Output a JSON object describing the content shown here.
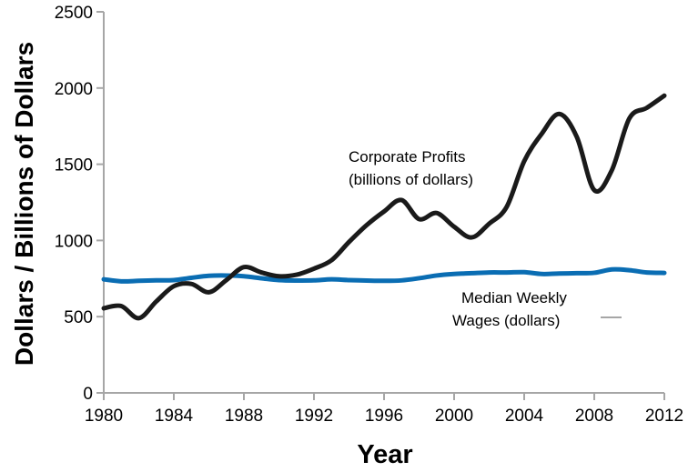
{
  "chart_data": {
    "type": "line",
    "title": "",
    "xlabel": "Year",
    "ylabel": "Dollars / Billions of Dollars",
    "xlim": [
      1980,
      2012
    ],
    "ylim": [
      0,
      2500
    ],
    "grid": false,
    "x_ticks": [
      1980,
      1984,
      1988,
      1992,
      1996,
      2000,
      2004,
      2008,
      2012
    ],
    "x_tick_labels": [
      "1980",
      "1984",
      "1988",
      "1992",
      "1996",
      "2000",
      "2004",
      "2008",
      "2012"
    ],
    "y_ticks": [
      0,
      500,
      1000,
      1500,
      2000,
      2500
    ],
    "y_tick_labels": [
      "0",
      "500",
      "1000",
      "1500",
      "2000",
      "2500"
    ],
    "colors": {
      "profits": "#1a1a1a",
      "wages": "#0a6db3",
      "axis": "#a6a6a6"
    },
    "series": [
      {
        "name": "Corporate Profits (billions of dollars)",
        "label_lines": [
          "Corporate Profits",
          "(billions of dollars)"
        ],
        "color": "#1a1a1a",
        "x": [
          1980,
          1981,
          1982,
          1983,
          1984,
          1985,
          1986,
          1987,
          1988,
          1989,
          1990,
          1991,
          1992,
          1993,
          1994,
          1995,
          1996,
          1997,
          1998,
          1999,
          2000,
          2001,
          2002,
          2003,
          2004,
          2005,
          2006,
          2007,
          2008,
          2009,
          2010,
          2011,
          2012
        ],
        "values": [
          555,
          570,
          490,
          600,
          700,
          715,
          660,
          740,
          825,
          790,
          765,
          775,
          815,
          870,
          990,
          1100,
          1190,
          1265,
          1140,
          1180,
          1090,
          1020,
          1110,
          1220,
          1520,
          1700,
          1830,
          1680,
          1330,
          1460,
          1800,
          1870,
          1950
        ]
      },
      {
        "name": "Median Weekly Wages (dollars)",
        "label_lines": [
          "Median Weekly",
          "Wages (dollars)"
        ],
        "color": "#0a6db3",
        "x": [
          1980,
          1981,
          1982,
          1983,
          1984,
          1985,
          1986,
          1987,
          1988,
          1989,
          1990,
          1991,
          1992,
          1993,
          1994,
          1995,
          1996,
          1997,
          1998,
          1999,
          2000,
          2001,
          2002,
          2003,
          2004,
          2005,
          2006,
          2007,
          2008,
          2009,
          2010,
          2011,
          2012
        ],
        "values": [
          745,
          732,
          735,
          738,
          740,
          755,
          768,
          770,
          765,
          752,
          740,
          737,
          738,
          745,
          740,
          737,
          735,
          738,
          752,
          770,
          780,
          785,
          790,
          790,
          792,
          780,
          783,
          785,
          788,
          810,
          805,
          790,
          787
        ]
      }
    ]
  }
}
